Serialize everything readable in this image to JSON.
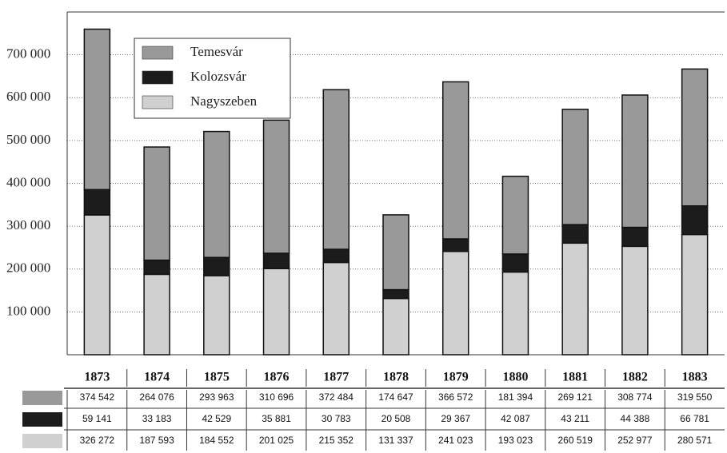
{
  "chart_data": {
    "type": "stacked-bar",
    "categories": [
      "1873",
      "1874",
      "1875",
      "1876",
      "1877",
      "1878",
      "1879",
      "1880",
      "1881",
      "1882",
      "1883"
    ],
    "series": [
      {
        "name": "Temesvár",
        "color": "#999999",
        "values": [
          374542,
          264076,
          293963,
          310696,
          372484,
          174647,
          366572,
          181394,
          269121,
          308774,
          319550
        ],
        "value_labels": [
          "374 542",
          "264 076",
          "293 963",
          "310 696",
          "372 484",
          "174 647",
          "366 572",
          "181 394",
          "269 121",
          "308 774",
          "319 550"
        ]
      },
      {
        "name": "Kolozsvár",
        "color": "#1c1c1c",
        "values": [
          59141,
          33183,
          42529,
          35881,
          30783,
          20508,
          29367,
          42087,
          43211,
          44388,
          66781
        ],
        "value_labels": [
          "59 141",
          "33 183",
          "42 529",
          "35 881",
          "30 783",
          "20 508",
          "29 367",
          "42 087",
          "43 211",
          "44 388",
          "66 781"
        ]
      },
      {
        "name": "Nagyszeben",
        "color": "#d0d0d0",
        "values": [
          326272,
          187593,
          184552,
          201025,
          215352,
          131337,
          241023,
          193023,
          260519,
          252977,
          280571
        ],
        "value_labels": [
          "326 272",
          "187 593",
          "184 552",
          "201 025",
          "215 352",
          "131 337",
          "241 023",
          "193 023",
          "260 519",
          "252 977",
          "280 571"
        ]
      }
    ],
    "ylim": [
      0,
      800000
    ],
    "yticks": [
      {
        "value": 100000,
        "label": "100 000"
      },
      {
        "value": 200000,
        "label": "200 000"
      },
      {
        "value": 300000,
        "label": "300 000"
      },
      {
        "value": 400000,
        "label": "400 000"
      },
      {
        "value": 500000,
        "label": "500 000"
      },
      {
        "value": 600000,
        "label": "600 000"
      },
      {
        "value": 700000,
        "label": "700 000"
      }
    ],
    "grid": true
  }
}
